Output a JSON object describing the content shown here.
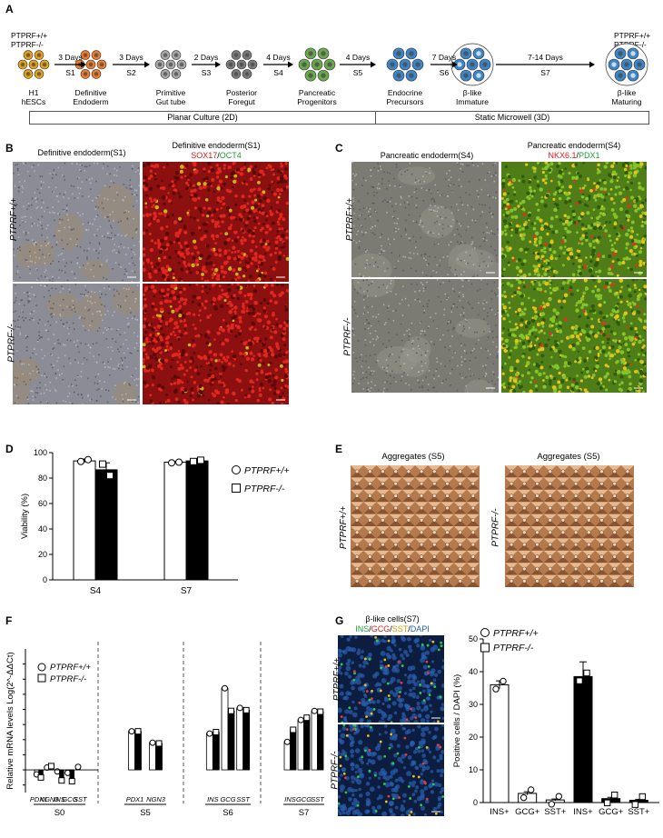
{
  "panel_letters": {
    "a": "A",
    "b": "B",
    "c": "C",
    "d": "D",
    "e": "E",
    "f": "F",
    "g": "G"
  },
  "colors": {
    "red": "#d81b1b",
    "green": "#1c9e3a",
    "yellow": "#c9a100",
    "blue": "#1f5fbf",
    "planar_bar": "#d9d9d9",
    "microwell_bar": "#cddcf3",
    "he_cell": "#e3a21a",
    "de_cell": "#ef7b2b",
    "pgt_cell": "#a8a8a8",
    "pf_cell": "#7a7a7a",
    "pp_cell": "#6aa84f",
    "ep_cell": "#3d85c6"
  },
  "panelA": {
    "start_genotypes": [
      "PTPRF+/+",
      "PTPRF-/-"
    ],
    "end_genotypes": [
      "PTPRF+/+",
      "PTPRF-/-"
    ],
    "stages": [
      {
        "name1": "H1",
        "name2": "hESCs",
        "icon": "hesc-cluster-icon"
      },
      {
        "name1": "Definitive",
        "name2": "Endoderm",
        "icon": "definitive-endoderm-icon"
      },
      {
        "name1": "Primitive",
        "name2": "Gut tube",
        "icon": "primitive-gut-tube-icon"
      },
      {
        "name1": "Posterior",
        "name2": "Foregut",
        "icon": "posterior-foregut-icon"
      },
      {
        "name1": "Pancreatic",
        "name2": "Progenitors",
        "icon": "pancreatic-progenitor-icon"
      },
      {
        "name1": "Endocrine",
        "name2": "Precursors",
        "icon": "endocrine-precursor-icon"
      },
      {
        "name1": "β-like",
        "name2": "Immature",
        "icon": "beta-immature-icon"
      },
      {
        "name1": "β-like",
        "name2": "Maturing",
        "icon": "beta-maturing-icon"
      }
    ],
    "steps": [
      {
        "days": "3 Days",
        "stage": "S1"
      },
      {
        "days": "3 Days",
        "stage": "S2"
      },
      {
        "days": "2 Days",
        "stage": "S3"
      },
      {
        "days": "4 Days",
        "stage": "S4"
      },
      {
        "days": "4 Days",
        "stage": "S5"
      },
      {
        "days": "7 Days",
        "stage": "S6"
      },
      {
        "days": "7-14 Days",
        "stage": "S7"
      }
    ],
    "culture_bars": {
      "planar": "Planar Culture (2D)",
      "microwell": "Static Microwell (3D)"
    }
  },
  "panelB": {
    "left_title": "Definitive endoderm(S1)",
    "right_title": "Definitive endoderm(S1)",
    "stain_red": "SOX17",
    "slash": "/",
    "stain_green": "OCT4",
    "row_wt": "PTPRF+/+",
    "row_ko": "PTPRF-/-"
  },
  "panelC": {
    "left_title": "Pancreatic endoderm(S4)",
    "right_title": "Pancreatic endoderm(S4)",
    "stain_red": "NKX6.1",
    "slash": "/",
    "stain_green": "PDX1",
    "row_wt": "PTPRF+/+",
    "row_ko": "PTPRF-/-"
  },
  "panelE": {
    "left_title": "Aggregates (S5)",
    "right_title": "Aggregates (S5)",
    "left_label": "PTPRF+/+",
    "right_label": "PTPRF-/-"
  },
  "panelG": {
    "title": "β-like cells(S7)",
    "s1": "INS",
    "s2": "GCG",
    "s3": "SST",
    "s4": "DAPI",
    "slash": "/",
    "row_wt": "PTPRF+/+",
    "row_ko": "PTPRF-/-"
  },
  "chart_data": [
    {
      "id": "D",
      "type": "bar",
      "categories": [
        "S4",
        "S7"
      ],
      "series": [
        {
          "name": "PTPRF+/+",
          "values": [
            93.5,
            92.5
          ],
          "points": [
            [
              93,
              94.5
            ],
            [
              92,
              92.5
            ]
          ]
        },
        {
          "name": "PTPRF-/-",
          "values": [
            86.5,
            93.5
          ],
          "points": [
            [
              91,
              82
            ],
            [
              93,
              94
            ]
          ]
        }
      ],
      "errors": [
        [
          1.5,
          0.5
        ],
        [
          5.5,
          1.5
        ]
      ],
      "ylabel": "Viability (%)",
      "ylim": [
        0,
        100
      ],
      "yticks": [
        0,
        20,
        40,
        60,
        80,
        100
      ],
      "legend": "right"
    },
    {
      "id": "F",
      "type": "bar",
      "groups": [
        {
          "stage": "S0",
          "genes": [
            "PDX1",
            "NGN3",
            "INS",
            "GCG",
            "SST"
          ],
          "wt": [
            -0.3,
            0.15,
            -0.1,
            -0.2,
            0.2
          ],
          "ko": [
            -0.5,
            0.25,
            -0.7,
            -0.75,
            null
          ]
        },
        {
          "stage": "S5",
          "genes": [
            "PDX1",
            "NGN3"
          ],
          "wt": [
            2.55,
            1.8
          ],
          "ko": [
            2.55,
            1.75
          ]
        },
        {
          "stage": "S6",
          "genes": [
            "INS",
            "GCG",
            "SST"
          ],
          "wt": [
            2.4,
            5.4,
            4.1
          ],
          "ko": [
            2.5,
            3.9,
            3.95
          ]
        },
        {
          "stage": "S7",
          "genes": [
            "INS",
            "GCG",
            "SST"
          ],
          "wt": [
            1.85,
            3.3,
            3.9
          ],
          "ko": [
            2.65,
            3.45,
            3.85
          ]
        }
      ],
      "series_names": [
        "PTPRF+/+",
        "PTPRF-/-"
      ],
      "ylabel": "Relative mRNA levels Log(2^-ΔΔCt)",
      "ylim": [
        -1.5,
        8
      ],
      "yticks": [
        -1,
        0,
        1,
        2,
        3,
        4,
        5,
        6,
        7
      ],
      "legend": "top-left"
    },
    {
      "id": "G",
      "type": "bar",
      "categories": [
        "INS+",
        "GCG+",
        "SST+",
        "INS+",
        "GCG+",
        "SST+"
      ],
      "values": [
        36,
        2.8,
        0.8,
        38.5,
        1.2,
        0.7
      ],
      "series_of_bar": [
        "PTPRF+/+",
        "PTPRF+/+",
        "PTPRF+/+",
        "PTPRF-/-",
        "PTPRF-/-",
        "PTPRF-/-"
      ],
      "errors": [
        1.2,
        0.5,
        0.3,
        4.5,
        0.4,
        0.3
      ],
      "series_names": [
        "PTPRF+/+",
        "PTPRF-/-"
      ],
      "ylabel": "Positive cells / DAPI (%)",
      "ylim": [
        0,
        50
      ],
      "yticks": [
        0,
        10,
        20,
        30,
        40,
        50
      ],
      "legend": "top-right"
    }
  ]
}
